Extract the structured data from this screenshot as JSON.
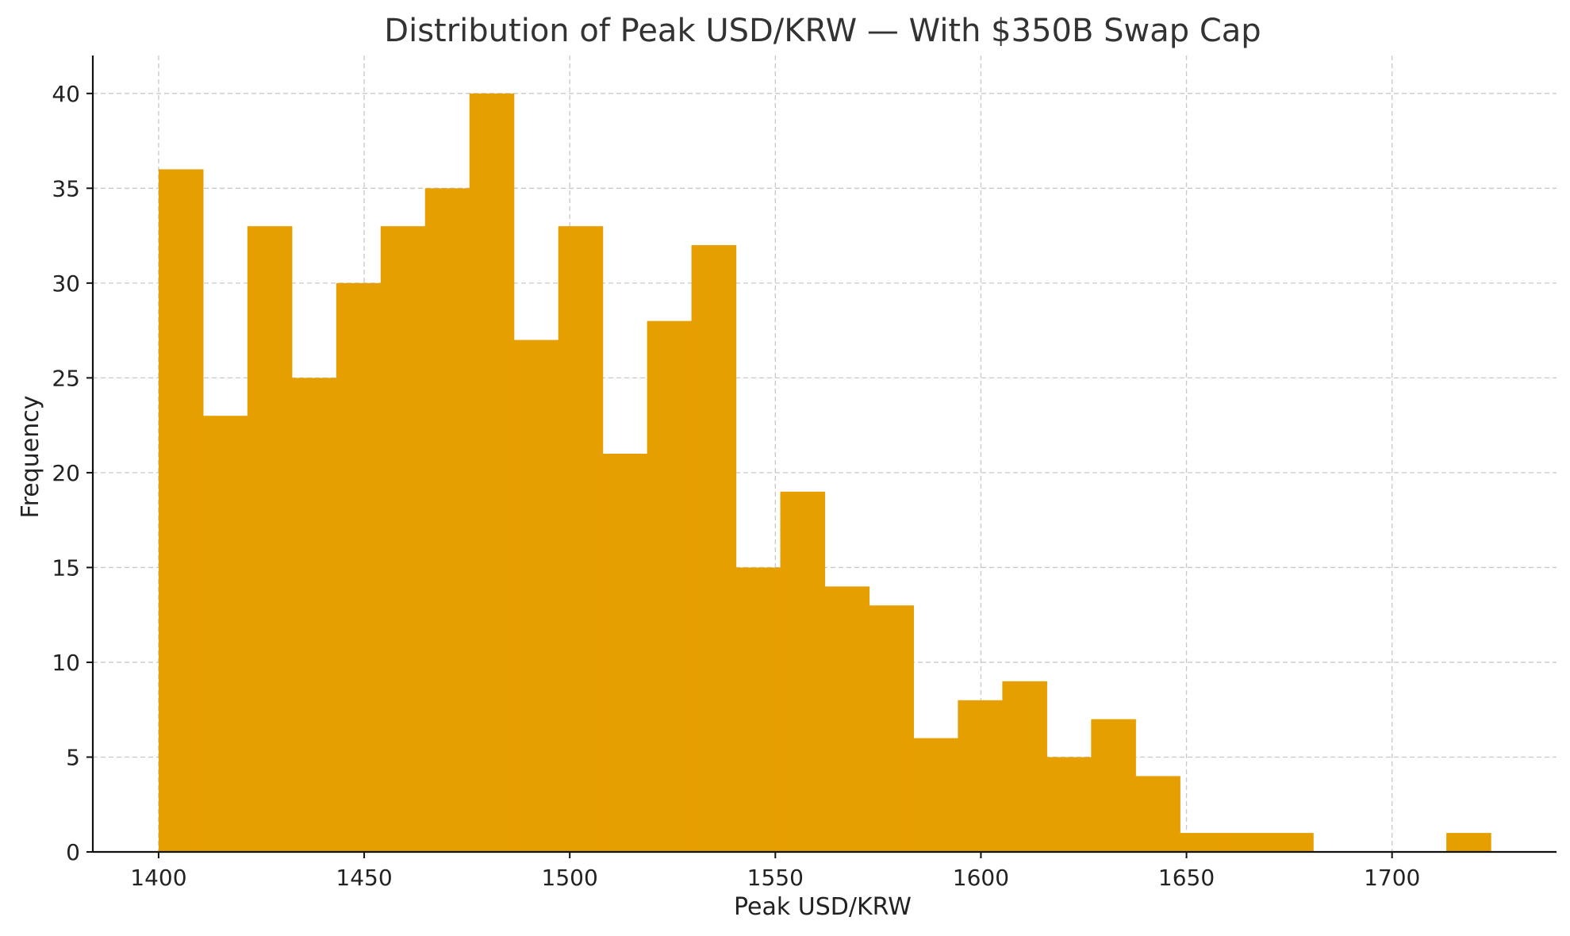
{
  "chart_data": {
    "type": "bar",
    "title": "Distribution of Peak USD/KRW — With $350B Swap Cap",
    "xlabel": "Peak USD/KRW",
    "ylabel": "Frequency",
    "bar_color": "#E69F00",
    "grid": true,
    "xlim": [
      1384,
      1740
    ],
    "ylim": [
      0,
      42
    ],
    "xticks": [
      1400,
      1450,
      1500,
      1550,
      1600,
      1650,
      1700
    ],
    "yticks": [
      0,
      5,
      10,
      15,
      20,
      25,
      30,
      35,
      40
    ],
    "bins": [
      {
        "x0": 1400.0,
        "x1": 1410.8,
        "value": 36
      },
      {
        "x0": 1410.8,
        "x1": 1421.6,
        "value": 23
      },
      {
        "x0": 1421.6,
        "x1": 1432.4,
        "value": 33
      },
      {
        "x0": 1432.4,
        "x1": 1443.2,
        "value": 25
      },
      {
        "x0": 1443.2,
        "x1": 1454.0,
        "value": 30
      },
      {
        "x0": 1454.0,
        "x1": 1464.8,
        "value": 33
      },
      {
        "x0": 1464.8,
        "x1": 1475.6,
        "value": 35
      },
      {
        "x0": 1475.6,
        "x1": 1486.4,
        "value": 40
      },
      {
        "x0": 1486.4,
        "x1": 1497.2,
        "value": 27
      },
      {
        "x0": 1497.2,
        "x1": 1508.0,
        "value": 33
      },
      {
        "x0": 1508.0,
        "x1": 1518.8,
        "value": 21
      },
      {
        "x0": 1518.8,
        "x1": 1529.6,
        "value": 28
      },
      {
        "x0": 1529.6,
        "x1": 1540.4,
        "value": 32
      },
      {
        "x0": 1540.4,
        "x1": 1551.2,
        "value": 15
      },
      {
        "x0": 1551.2,
        "x1": 1562.0,
        "value": 19
      },
      {
        "x0": 1562.0,
        "x1": 1572.8,
        "value": 14
      },
      {
        "x0": 1572.8,
        "x1": 1583.6,
        "value": 13
      },
      {
        "x0": 1583.6,
        "x1": 1594.4,
        "value": 6
      },
      {
        "x0": 1594.4,
        "x1": 1605.2,
        "value": 8
      },
      {
        "x0": 1605.2,
        "x1": 1616.0,
        "value": 9
      },
      {
        "x0": 1616.0,
        "x1": 1626.8,
        "value": 5
      },
      {
        "x0": 1626.8,
        "x1": 1637.6,
        "value": 7
      },
      {
        "x0": 1637.6,
        "x1": 1648.4,
        "value": 4
      },
      {
        "x0": 1648.4,
        "x1": 1659.2,
        "value": 1
      },
      {
        "x0": 1659.2,
        "x1": 1670.0,
        "value": 1
      },
      {
        "x0": 1670.0,
        "x1": 1680.8,
        "value": 1
      },
      {
        "x0": 1680.8,
        "x1": 1691.6,
        "value": 0
      },
      {
        "x0": 1691.6,
        "x1": 1702.4,
        "value": 0
      },
      {
        "x0": 1702.4,
        "x1": 1713.2,
        "value": 0
      },
      {
        "x0": 1713.2,
        "x1": 1724.0,
        "value": 1
      }
    ]
  }
}
